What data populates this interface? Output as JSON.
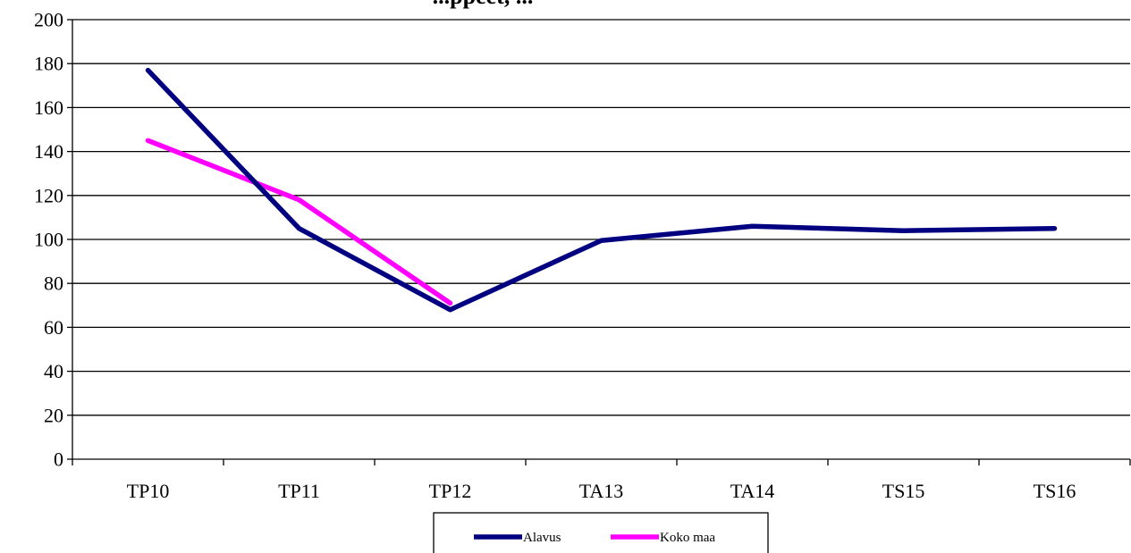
{
  "chart_data": {
    "type": "line",
    "title": "...ppeet, ...",
    "categories": [
      "TP10",
      "TP11",
      "TP12",
      "TA13",
      "TA14",
      "TS15",
      "TS16"
    ],
    "ylim": [
      0,
      200
    ],
    "yticks": [
      0,
      20,
      40,
      60,
      80,
      100,
      120,
      140,
      160,
      180,
      200
    ],
    "grid": true,
    "legend_position": "bottom",
    "series": [
      {
        "name": "Alavus",
        "color": "#000080",
        "values": [
          177,
          105,
          68,
          99.5,
          106,
          104,
          105
        ]
      },
      {
        "name": "Koko maa",
        "color": "#FF00FF",
        "values": [
          145,
          118,
          71,
          null,
          null,
          null,
          null
        ]
      }
    ]
  }
}
